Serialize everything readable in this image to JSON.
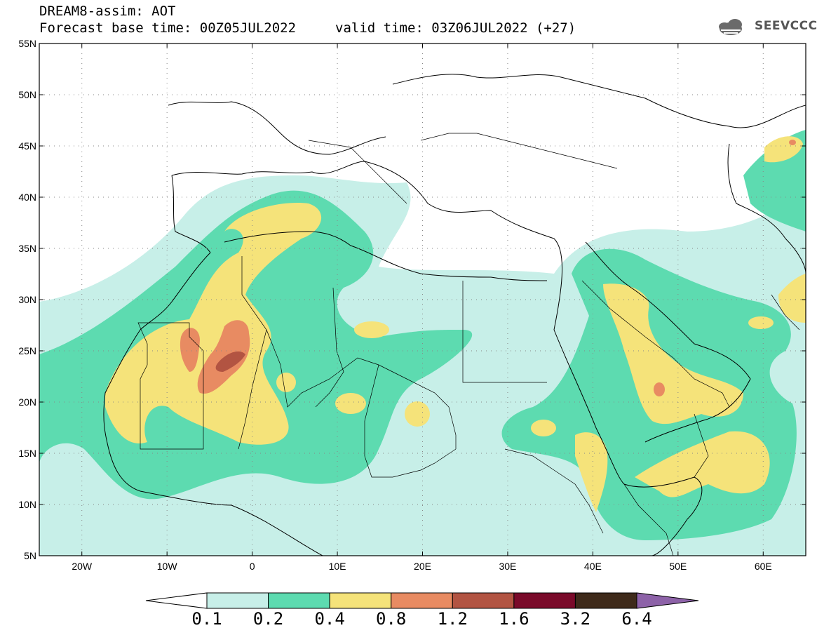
{
  "header": {
    "title": "DREAM8-assim: AOT",
    "base_time": "Forecast base time: 00Z05JUL2022",
    "valid_time": "valid time: 03Z06JUL2022 (+27)"
  },
  "logo": {
    "text": "SEEVCCC",
    "icon": "cloud-icon"
  },
  "map": {
    "lat_labels": [
      "55N",
      "50N",
      "45N",
      "40N",
      "35N",
      "30N",
      "25N",
      "20N",
      "15N",
      "10N",
      "5N"
    ],
    "lon_labels": [
      "20W",
      "10W",
      "0",
      "10E",
      "20E",
      "30E",
      "40E",
      "50E",
      "60E"
    ],
    "lon_range": [
      -25,
      65
    ],
    "lat_range": [
      5,
      55
    ],
    "grid": "dotted"
  },
  "legend": {
    "bounds": [
      "0.1",
      "0.2",
      "0.4",
      "0.8",
      "1.2",
      "1.6",
      "3.2",
      "6.4"
    ],
    "colors": [
      "#ffffff",
      "#c7efe8",
      "#5ddbb0",
      "#f5e37a",
      "#e88b62",
      "#b25442",
      "#7a0a2a",
      "#3e2a1a",
      "#8d62a8"
    ]
  }
}
